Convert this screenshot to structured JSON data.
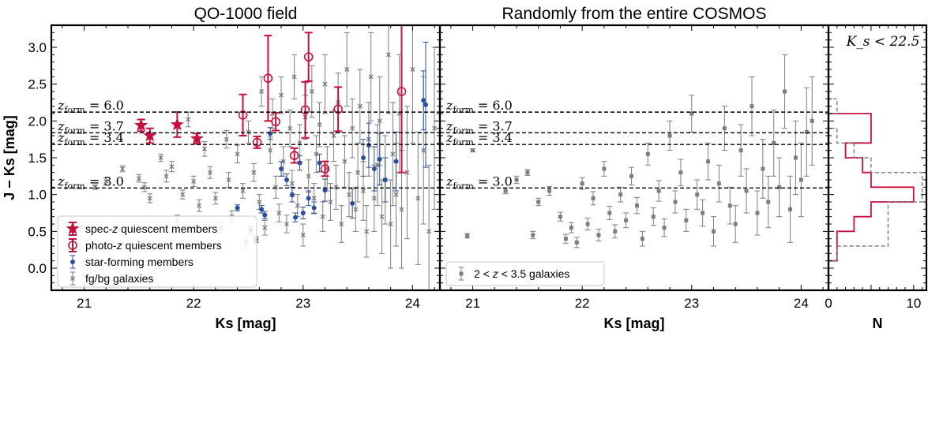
{
  "figure": {
    "panels": [
      {
        "id": "left",
        "title": "QO-1000 field",
        "xlabel": "Ks [mag]",
        "ylabel": "J − Ks [mag]"
      },
      {
        "id": "middle",
        "title": "Randomly from the entire COSMOS",
        "xlabel": "Ks [mag]"
      },
      {
        "id": "right",
        "annotation": "K_s < 22.5",
        "xlabel": "N"
      }
    ]
  },
  "chart_data": [
    {
      "type": "scatter",
      "panel": "left",
      "title": "QO-1000 field",
      "xlabel": "Ks [mag]",
      "ylabel": "J − Ks [mag]",
      "xlim": [
        20.7,
        24.25
      ],
      "ylim": [
        -0.3,
        3.3
      ],
      "xticks": [
        21,
        22,
        23,
        24
      ],
      "yticks": [
        0.0,
        0.5,
        1.0,
        1.5,
        2.0,
        2.5,
        3.0
      ],
      "ytick_labels": [
        "0.0",
        "0.5",
        "1.0",
        "1.5",
        "2.0",
        "2.5",
        "3.0"
      ],
      "hlines": [
        {
          "y": 2.12,
          "label": "z_form = 6.0"
        },
        {
          "y": 1.84,
          "label": "z_form = 3.7"
        },
        {
          "y": 1.68,
          "label": "z_form = 3.4"
        },
        {
          "y": 1.09,
          "label": "z_form = 3.0"
        }
      ],
      "legend_position": "lower-left",
      "series": [
        {
          "name": "spec-z quiescent members",
          "color": "#c8103e",
          "marker": "star",
          "points": [
            [
              21.52,
              1.94,
              0.08
            ],
            [
              21.6,
              1.8,
              0.1
            ],
            [
              21.85,
              1.95,
              0.17
            ],
            [
              22.03,
              1.76,
              0.07
            ]
          ]
        },
        {
          "name": "photo-z quiescent members",
          "color": "#c8103e",
          "marker": "open-circle",
          "points": [
            [
              22.45,
              2.08,
              0.28
            ],
            [
              22.58,
              1.71,
              0.08
            ],
            [
              22.68,
              2.58,
              0.58
            ],
            [
              22.75,
              1.99,
              0.12
            ],
            [
              22.92,
              1.53,
              0.1
            ],
            [
              23.02,
              2.15,
              0.38
            ],
            [
              23.05,
              2.87,
              0.33
            ],
            [
              23.2,
              1.35,
              0.1
            ],
            [
              23.32,
              2.16,
              0.3
            ],
            [
              23.9,
              2.4,
              1.1
            ]
          ]
        },
        {
          "name": "star-forming members",
          "color": "#2a4f9e",
          "marker": "dot",
          "points": [
            [
              22.4,
              0.82,
              0.04
            ],
            [
              22.52,
              0.52,
              0.05
            ],
            [
              22.57,
              0.39,
              0.04
            ],
            [
              22.62,
              0.8,
              0.05
            ],
            [
              22.65,
              0.72,
              0.05
            ],
            [
              22.7,
              1.83,
              0.08
            ],
            [
              22.8,
              1.35,
              0.1
            ],
            [
              22.85,
              1.2,
              0.08
            ],
            [
              22.9,
              1.0,
              0.1
            ],
            [
              22.93,
              0.69,
              0.06
            ],
            [
              22.97,
              1.43,
              0.1
            ],
            [
              23.0,
              0.75,
              0.08
            ],
            [
              23.05,
              0.95,
              0.1
            ],
            [
              23.1,
              0.82,
              0.08
            ],
            [
              23.15,
              1.43,
              0.12
            ],
            [
              23.2,
              1.06,
              0.15
            ],
            [
              23.45,
              0.88,
              0.2
            ],
            [
              23.55,
              1.5,
              0.25
            ],
            [
              23.6,
              1.67,
              0.3
            ],
            [
              23.65,
              1.35,
              0.3
            ],
            [
              23.7,
              1.48,
              0.35
            ],
            [
              23.75,
              1.2,
              0.3
            ],
            [
              23.85,
              1.45,
              0.4
            ],
            [
              24.1,
              2.28,
              0.4
            ],
            [
              24.12,
              2.22,
              0.85
            ]
          ]
        },
        {
          "name": "fg/bg galaxies",
          "color": "#7d7d7d",
          "marker": "x",
          "points": [
            [
              21.1,
              1.1,
              0.03
            ],
            [
              21.2,
              1.18,
              0.05
            ],
            [
              21.35,
              1.35,
              0.04
            ],
            [
              21.5,
              1.22,
              0.05
            ],
            [
              21.55,
              1.1,
              0.06
            ],
            [
              21.6,
              0.95,
              0.06
            ],
            [
              21.7,
              1.5,
              0.05
            ],
            [
              21.75,
              1.25,
              0.08
            ],
            [
              21.8,
              1.38,
              0.07
            ],
            [
              21.85,
              0.65,
              0.07
            ],
            [
              21.9,
              1.0,
              0.06
            ],
            [
              21.95,
              2.02,
              0.1
            ],
            [
              22.0,
              1.18,
              0.07
            ],
            [
              22.05,
              0.85,
              0.08
            ],
            [
              22.1,
              1.62,
              0.1
            ],
            [
              22.15,
              1.3,
              0.08
            ],
            [
              22.2,
              0.95,
              0.08
            ],
            [
              22.25,
              0.55,
              0.07
            ],
            [
              22.3,
              1.75,
              0.12
            ],
            [
              22.32,
              1.2,
              0.1
            ],
            [
              22.35,
              0.7,
              0.08
            ],
            [
              22.4,
              1.55,
              0.12
            ],
            [
              22.45,
              1.05,
              0.1
            ],
            [
              22.48,
              0.35,
              0.08
            ],
            [
              22.5,
              1.85,
              0.15
            ],
            [
              22.55,
              1.3,
              0.12
            ],
            [
              22.6,
              0.9,
              0.1
            ],
            [
              22.62,
              2.4,
              0.2
            ],
            [
              22.65,
              0.55,
              0.1
            ],
            [
              22.7,
              1.6,
              0.18
            ],
            [
              22.72,
              2.1,
              0.2
            ],
            [
              22.75,
              1.1,
              0.15
            ],
            [
              22.78,
              0.75,
              0.12
            ],
            [
              22.8,
              2.35,
              0.25
            ],
            [
              22.82,
              1.45,
              0.2
            ],
            [
              22.85,
              0.6,
              0.12
            ],
            [
              22.88,
              1.9,
              0.25
            ],
            [
              22.9,
              1.15,
              0.18
            ],
            [
              22.92,
              2.6,
              0.3
            ],
            [
              22.95,
              0.85,
              0.15
            ],
            [
              22.97,
              1.7,
              0.25
            ],
            [
              23.0,
              0.45,
              0.15
            ],
            [
              23.02,
              2.05,
              0.3
            ],
            [
              23.05,
              1.25,
              0.22
            ],
            [
              23.08,
              2.4,
              0.35
            ],
            [
              23.1,
              0.95,
              0.2
            ],
            [
              23.12,
              1.55,
              0.25
            ],
            [
              23.15,
              1.95,
              0.3
            ],
            [
              23.18,
              0.7,
              0.2
            ],
            [
              23.2,
              2.5,
              0.4
            ],
            [
              23.22,
              1.35,
              0.3
            ],
            [
              23.25,
              0.9,
              0.25
            ],
            [
              23.28,
              1.8,
              0.35
            ],
            [
              23.3,
              1.1,
              0.3
            ],
            [
              23.32,
              2.25,
              0.4
            ],
            [
              23.35,
              0.6,
              0.25
            ],
            [
              23.38,
              1.45,
              0.35
            ],
            [
              23.4,
              2.7,
              0.5
            ],
            [
              23.42,
              1.0,
              0.3
            ],
            [
              23.45,
              1.9,
              0.4
            ],
            [
              23.48,
              0.8,
              0.3
            ],
            [
              23.5,
              1.3,
              0.4
            ],
            [
              23.52,
              2.2,
              0.5
            ],
            [
              23.55,
              1.05,
              0.4
            ],
            [
              23.58,
              0.5,
              0.35
            ],
            [
              23.6,
              1.75,
              0.5
            ],
            [
              23.62,
              2.6,
              0.6
            ],
            [
              23.65,
              0.95,
              0.45
            ],
            [
              23.68,
              1.4,
              0.55
            ],
            [
              23.7,
              2.0,
              0.6
            ],
            [
              23.72,
              0.7,
              0.5
            ],
            [
              23.75,
              1.2,
              0.6
            ],
            [
              23.78,
              2.9,
              0.8
            ],
            [
              23.8,
              0.6,
              0.6
            ],
            [
              23.82,
              1.55,
              0.7
            ],
            [
              23.85,
              1.0,
              0.7
            ],
            [
              23.88,
              2.1,
              0.8
            ],
            [
              23.9,
              0.8,
              0.8
            ],
            [
              23.95,
              1.3,
              0.9
            ],
            [
              24.0,
              2.7,
              1.0
            ],
            [
              24.05,
              0.95,
              0.9
            ],
            [
              24.1,
              1.6,
              1.0
            ],
            [
              24.15,
              0.5,
              0.9
            ],
            [
              24.2,
              1.9,
              1.1
            ]
          ]
        }
      ]
    },
    {
      "type": "scatter",
      "panel": "middle",
      "title": "Randomly from the entire COSMOS",
      "xlabel": "Ks [mag]",
      "xlim": [
        20.7,
        24.25
      ],
      "ylim": [
        -0.3,
        3.3
      ],
      "xticks": [
        21,
        22,
        23,
        24
      ],
      "hlines": [
        {
          "y": 2.12,
          "label": "z_form = 6.0"
        },
        {
          "y": 1.84,
          "label": "z_form = 3.7"
        },
        {
          "y": 1.68,
          "label": "z_form = 3.4"
        },
        {
          "y": 1.09,
          "label": "z_form = 3.0"
        }
      ],
      "legend_position": "lower-left",
      "series": [
        {
          "name": "2 < z < 3.5 galaxies",
          "color": "#7d7d7d",
          "marker": "square",
          "points": [
            [
              21.0,
              1.6,
              0.02
            ],
            [
              20.95,
              0.44,
              0.03
            ],
            [
              21.3,
              1.05,
              0.04
            ],
            [
              21.4,
              1.2,
              0.05
            ],
            [
              21.5,
              1.3,
              0.04
            ],
            [
              21.55,
              0.45,
              0.05
            ],
            [
              21.6,
              0.9,
              0.05
            ],
            [
              21.7,
              1.05,
              0.06
            ],
            [
              21.8,
              0.7,
              0.06
            ],
            [
              21.85,
              0.4,
              0.06
            ],
            [
              21.9,
              0.55,
              0.07
            ],
            [
              21.95,
              0.35,
              0.07
            ],
            [
              22.0,
              1.15,
              0.08
            ],
            [
              22.05,
              0.6,
              0.08
            ],
            [
              22.1,
              0.95,
              0.09
            ],
            [
              22.15,
              0.45,
              0.08
            ],
            [
              22.2,
              1.35,
              0.1
            ],
            [
              22.25,
              0.75,
              0.09
            ],
            [
              22.3,
              0.5,
              0.09
            ],
            [
              22.35,
              1.0,
              0.1
            ],
            [
              22.4,
              0.65,
              0.1
            ],
            [
              22.45,
              1.25,
              0.12
            ],
            [
              22.5,
              0.85,
              0.11
            ],
            [
              22.55,
              0.4,
              0.1
            ],
            [
              22.6,
              1.55,
              0.15
            ],
            [
              22.65,
              0.7,
              0.12
            ],
            [
              22.7,
              1.05,
              0.14
            ],
            [
              22.75,
              0.55,
              0.12
            ],
            [
              22.8,
              1.8,
              0.2
            ],
            [
              22.85,
              0.9,
              0.15
            ],
            [
              22.9,
              1.3,
              0.18
            ],
            [
              22.95,
              0.65,
              0.15
            ],
            [
              23.0,
              2.1,
              0.25
            ],
            [
              23.05,
              1.0,
              0.2
            ],
            [
              23.1,
              0.75,
              0.18
            ],
            [
              23.15,
              1.45,
              0.25
            ],
            [
              23.2,
              0.5,
              0.2
            ],
            [
              23.25,
              1.15,
              0.25
            ],
            [
              23.3,
              1.9,
              0.3
            ],
            [
              23.35,
              0.85,
              0.25
            ],
            [
              23.4,
              0.6,
              0.25
            ],
            [
              23.45,
              1.6,
              0.35
            ],
            [
              23.5,
              1.05,
              0.3
            ],
            [
              23.55,
              2.2,
              0.4
            ],
            [
              23.6,
              0.75,
              0.3
            ],
            [
              23.65,
              1.35,
              0.4
            ],
            [
              23.7,
              0.9,
              0.35
            ],
            [
              23.75,
              1.7,
              0.45
            ],
            [
              23.8,
              1.1,
              0.4
            ],
            [
              23.85,
              2.4,
              0.5
            ],
            [
              23.9,
              0.8,
              0.45
            ],
            [
              23.95,
              1.5,
              0.5
            ],
            [
              24.0,
              1.2,
              0.5
            ],
            [
              24.05,
              1.85,
              0.6
            ],
            [
              24.1,
              2.0,
              0.6
            ]
          ]
        }
      ]
    },
    {
      "type": "histogram",
      "panel": "right",
      "annotation": "K_s < 22.5",
      "orientation": "horizontal",
      "xlabel": "N",
      "xlim": [
        0,
        11.5
      ],
      "xticks": [
        0,
        10
      ],
      "ylim": [
        -0.3,
        3.3
      ],
      "bin_edges": [
        -0.1,
        0.1,
        0.3,
        0.5,
        0.7,
        0.9,
        1.1,
        1.3,
        1.5,
        1.7,
        1.9,
        2.1,
        2.3
      ],
      "series": [
        {
          "name": "QO-1000 field",
          "color": "#c8103e",
          "style": "solid",
          "counts": [
            0,
            1,
            1,
            3,
            5,
            10,
            5,
            4,
            2,
            5,
            5,
            0
          ]
        },
        {
          "name": "Randomly from the entire COSMOS",
          "color": "#7d7d7d",
          "style": "dashed",
          "counts": [
            0,
            1,
            7,
            7,
            7,
            11,
            11,
            5,
            3,
            1,
            0,
            1
          ]
        }
      ]
    }
  ]
}
